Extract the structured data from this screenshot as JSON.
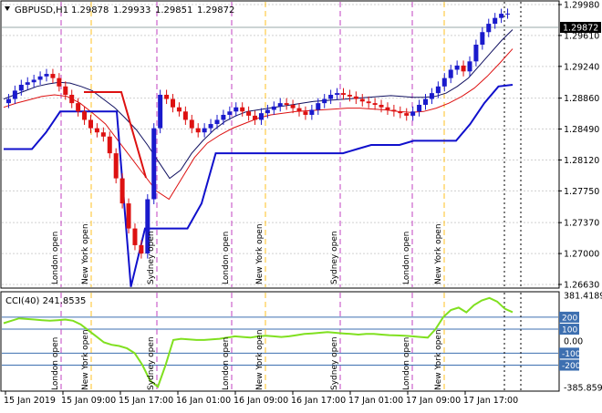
{
  "window": {
    "symbol_label": "GBPUSD,H1",
    "ohlc": [
      "1.29878",
      "1.29933",
      "1.29851",
      "1.29872"
    ],
    "current_price_label": "1.29872"
  },
  "main_axis": {
    "ticks": [
      "1.29980",
      "1.29610",
      "1.29240",
      "1.28860",
      "1.28490",
      "1.28120",
      "1.27750",
      "1.27370",
      "1.27000",
      "1.26630"
    ]
  },
  "sessions": [
    {
      "label": "London open",
      "type": "london"
    },
    {
      "label": "New York open",
      "type": "newyork"
    },
    {
      "label": "Sydney open",
      "type": "sydney"
    },
    {
      "label": "London open",
      "type": "london"
    },
    {
      "label": "New York open",
      "type": "newyork"
    },
    {
      "label": "Sydney open",
      "type": "sydney"
    },
    {
      "label": "London open",
      "type": "london"
    },
    {
      "label": "New York open",
      "type": "newyork"
    }
  ],
  "cci_panel": {
    "title": "CCI(40) 241.8535",
    "ticks": [
      "381.4189",
      "200",
      "100",
      "0.00",
      "-100",
      "-200",
      "-385.8597"
    ],
    "highlight_ticks": [
      "200",
      "100",
      "-100",
      "-200"
    ]
  },
  "time_axis": {
    "labels": [
      "15 Jan 2019",
      "15 Jan 09:00",
      "15 Jan 17:00",
      "16 Jan 01:00",
      "16 Jan 09:00",
      "16 Jan 17:00",
      "17 Jan 01:00",
      "17 Jan 09:00",
      "17 Jan 17:00"
    ]
  },
  "colors": {
    "bull_candle": "#1a1acc",
    "bear_candle": "#dd1111",
    "ma_fast": "#101060",
    "ma_slow": "#dd1111",
    "trail_stop": "#1010cc",
    "trail_stop_red": "#dd1111",
    "cci_line": "#80e020",
    "london_line": "#c040c0",
    "newyork_line": "#ffc020",
    "sydney_line": "#c040c0",
    "axis_label_bg": "#3d6fb0"
  },
  "chart_data": {
    "type": "candlestick",
    "timeframe": "H1",
    "series": [
      {
        "name": "GBPUSD",
        "open": [
          1.288,
          1.2885,
          1.2895,
          1.2902,
          1.2905,
          1.2908,
          1.2912,
          1.2915,
          1.291,
          1.29,
          1.289,
          1.288,
          1.287,
          1.286,
          1.285,
          1.2845,
          1.284,
          1.282,
          1.279,
          1.276,
          1.273,
          1.271,
          1.27,
          1.2765,
          1.285,
          1.289,
          1.2885,
          1.2875,
          1.287,
          1.286,
          1.285,
          1.2845,
          1.285,
          1.2855,
          1.286,
          1.2866,
          1.287,
          1.2875,
          1.287,
          1.2865,
          1.286,
          1.2868,
          1.2872,
          1.2876,
          1.288,
          1.2878,
          1.2874,
          1.287,
          1.2866,
          1.2872,
          1.288,
          1.2885,
          1.289,
          1.2892,
          1.289,
          1.2888,
          1.2885,
          1.2882,
          1.288,
          1.2878,
          1.2875,
          1.2872,
          1.287,
          1.2868,
          1.2865,
          1.287,
          1.2878,
          1.2885,
          1.2892,
          1.29,
          1.291,
          1.292,
          1.2925,
          1.2918,
          1.293,
          1.295,
          1.2965,
          1.2975,
          1.2982,
          1.2987
        ]
      },
      {
        "name": "MA fast",
        "values": [
          1.2885,
          1.289,
          1.2895,
          1.29,
          1.2903,
          1.2905,
          1.2904,
          1.29,
          1.2895,
          1.2885,
          1.2875,
          1.2862,
          1.2848,
          1.283,
          1.281,
          1.279,
          1.28,
          1.282,
          1.2835,
          1.2848,
          1.2858,
          1.2865,
          1.287,
          1.2872,
          1.2874,
          1.2876,
          1.2878,
          1.288,
          1.2882,
          1.2883,
          1.2884,
          1.2885,
          1.2886,
          1.2887,
          1.2888,
          1.2889,
          1.2888,
          1.2887,
          1.2887,
          1.2888,
          1.2892,
          1.29,
          1.291,
          1.2925,
          1.294,
          1.2955,
          1.2968
        ]
      },
      {
        "name": "MA slow",
        "values": [
          1.2875,
          1.288,
          1.2884,
          1.2888,
          1.289,
          1.2888,
          1.288,
          1.2868,
          1.2855,
          1.2835,
          1.2815,
          1.2795,
          1.2775,
          1.2765,
          1.279,
          1.2815,
          1.2832,
          1.2842,
          1.285,
          1.2856,
          1.2862,
          1.2866,
          1.2868,
          1.287,
          1.2871,
          1.2872,
          1.2873,
          1.2874,
          1.2874,
          1.2873,
          1.2872,
          1.287,
          1.2869,
          1.287,
          1.2874,
          1.288,
          1.2888,
          1.2898,
          1.2912,
          1.2928,
          1.2945
        ]
      },
      {
        "name": "Trailing stop",
        "values": [
          1.2825,
          1.2825,
          1.2825,
          1.2845,
          1.287,
          1.287,
          1.287,
          1.287,
          1.287,
          1.266,
          1.273,
          1.273,
          1.273,
          1.273,
          1.276,
          1.282,
          1.282,
          1.282,
          1.282,
          1.282,
          1.282,
          1.282,
          1.282,
          1.282,
          1.282,
          1.2825,
          1.283,
          1.283,
          1.283,
          1.2835,
          1.2835,
          1.2835,
          1.2835,
          1.2855,
          1.288,
          1.29,
          1.2902
        ]
      },
      {
        "name": "CCI(40)",
        "values": [
          150,
          170,
          190,
          185,
          180,
          175,
          170,
          175,
          180,
          170,
          140,
          90,
          40,
          -10,
          -30,
          -40,
          -60,
          -100,
          -200,
          -330,
          -380,
          -200,
          10,
          20,
          15,
          10,
          10,
          15,
          20,
          30,
          40,
          35,
          30,
          40,
          45,
          40,
          35,
          40,
          50,
          60,
          65,
          70,
          75,
          70,
          65,
          60,
          55,
          60,
          60,
          55,
          50,
          48,
          45,
          40,
          35,
          30,
          100,
          200,
          260,
          280,
          240,
          300,
          340,
          360,
          330,
          270,
          242
        ]
      }
    ],
    "ylim": [
      1.2663,
      1.2998
    ],
    "cci_ylim": [
      -385.8597,
      381.4189
    ],
    "grid": true
  }
}
